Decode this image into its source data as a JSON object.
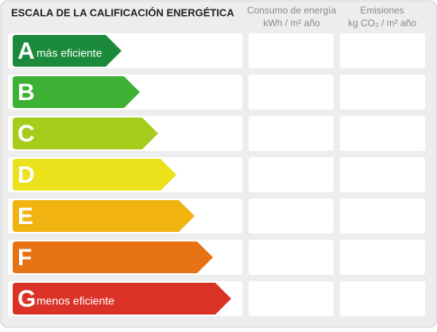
{
  "header": {
    "title": "ESCALA DE LA CALIFICACIÓN ENERGÉTICA",
    "columns": [
      [
        "Consumo de energía",
        "kWh / m² año"
      ],
      [
        "Emisiones",
        "kg CO₂ / m² año"
      ]
    ]
  },
  "rows": [
    {
      "letter": "A",
      "label": "más eficiente",
      "color": "#1b8a3b"
    },
    {
      "letter": "B",
      "color": "#3cb134"
    },
    {
      "letter": "C",
      "color": "#a6cc1c"
    },
    {
      "letter": "D",
      "color": "#ebe21b"
    },
    {
      "letter": "E",
      "color": "#f0b30f"
    },
    {
      "letter": "F",
      "color": "#e67214"
    },
    {
      "letter": "G",
      "label": "menos eficiente",
      "color": "#da3226"
    }
  ]
}
